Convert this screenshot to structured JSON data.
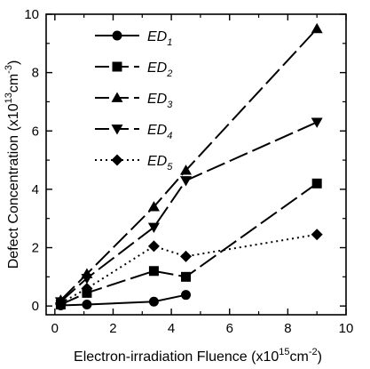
{
  "chart_data": {
    "type": "line",
    "xlabel": "Electron-irradiation Fluence (x10",
    "xlabel_exp": "15",
    "xlabel_unit": "cm",
    "xlabel_unit_exp": "-2",
    "xlabel_close": ")",
    "ylabel": "Defect Concentration (x10",
    "ylabel_exp": "13",
    "ylabel_unit": "cm",
    "ylabel_unit_exp": "-3",
    "ylabel_close": ")",
    "xlim": [
      -0.3,
      10
    ],
    "ylim": [
      -0.3,
      10
    ],
    "x_ticks": [
      "0",
      "2",
      "4",
      "6",
      "8",
      "10"
    ],
    "y_ticks": [
      "0",
      "2",
      "4",
      "6",
      "8",
      "10"
    ],
    "x_tick_values": [
      0,
      2,
      4,
      6,
      8,
      10
    ],
    "y_tick_values": [
      0,
      2,
      4,
      6,
      8,
      10
    ],
    "grid": false,
    "legend_position": "top-left",
    "series": [
      {
        "name": "ED",
        "sub": "1",
        "marker": "circle",
        "dash": "solid",
        "points": [
          [
            0.2,
            0.02
          ],
          [
            1.1,
            0.05
          ],
          [
            3.4,
            0.15
          ],
          [
            4.5,
            0.38
          ]
        ]
      },
      {
        "name": "ED",
        "sub": "2",
        "marker": "square",
        "dash": "long-dash",
        "points": [
          [
            0.2,
            0.05
          ],
          [
            1.1,
            0.45
          ],
          [
            3.4,
            1.2
          ],
          [
            4.5,
            1.0
          ],
          [
            9.0,
            4.2
          ]
        ]
      },
      {
        "name": "ED",
        "sub": "3",
        "marker": "triangle-up",
        "dash": "long-dash",
        "points": [
          [
            0.2,
            0.2
          ],
          [
            1.1,
            1.1
          ],
          [
            3.4,
            3.4
          ],
          [
            4.5,
            4.65
          ],
          [
            9.0,
            9.5
          ]
        ]
      },
      {
        "name": "ED",
        "sub": "4",
        "marker": "triangle-down",
        "dash": "long-dash",
        "points": [
          [
            0.2,
            0.15
          ],
          [
            1.1,
            0.95
          ],
          [
            3.4,
            2.7
          ],
          [
            4.5,
            4.3
          ],
          [
            9.0,
            6.3
          ]
        ]
      },
      {
        "name": "ED",
        "sub": "5",
        "marker": "diamond",
        "dash": "dotted",
        "points": [
          [
            0.2,
            0.1
          ],
          [
            1.1,
            0.6
          ],
          [
            3.4,
            2.05
          ],
          [
            4.5,
            1.7
          ],
          [
            9.0,
            2.45
          ]
        ]
      }
    ]
  }
}
